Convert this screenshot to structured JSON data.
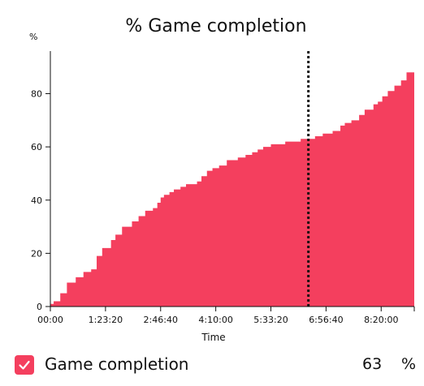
{
  "chart_data": {
    "type": "area",
    "title": "%  Game completion",
    "ylabel": "%",
    "xlabel": "Time",
    "ylim": [
      0,
      96
    ],
    "xlim_seconds": [
      0,
      33000
    ],
    "y_ticks": [
      0,
      20,
      40,
      60,
      80
    ],
    "x_tick_labels": [
      "00:00",
      "1:23:20",
      "2:46:40",
      "4:10:00",
      "5:33:20",
      "6:56:40",
      "8:20:00"
    ],
    "x_tick_seconds": [
      0,
      5000,
      10000,
      15000,
      20000,
      25000,
      30000
    ],
    "fill_color": "#f43f5e",
    "marker_line_seconds": 23400,
    "series": [
      {
        "name": "Game completion",
        "x_seconds": [
          0,
          300,
          900,
          1500,
          2300,
          3000,
          3700,
          4200,
          4700,
          5500,
          5900,
          6500,
          7400,
          8000,
          8600,
          9300,
          9700,
          10000,
          10300,
          10800,
          11200,
          11800,
          12300,
          12800,
          13300,
          13700,
          14200,
          14700,
          15300,
          16000,
          17000,
          17700,
          18300,
          18800,
          19300,
          20000,
          20600,
          21300,
          22000,
          22700,
          23400,
          24000,
          24700,
          25600,
          26300,
          26700,
          27300,
          28000,
          28500,
          29300,
          29700,
          30100,
          30600,
          31200,
          31800,
          32300,
          33000
        ],
        "values": [
          1,
          2,
          5,
          9,
          11,
          13,
          14,
          19,
          22,
          25,
          27,
          30,
          32,
          34,
          36,
          37,
          39,
          41,
          42,
          43,
          44,
          45,
          46,
          46,
          47,
          49,
          51,
          52,
          53,
          55,
          56,
          57,
          58,
          59,
          60,
          61,
          61,
          62,
          62,
          63,
          63,
          64,
          65,
          66,
          68,
          69,
          70,
          72,
          74,
          76,
          77,
          79,
          81,
          83,
          85,
          88,
          91
        ]
      }
    ]
  },
  "legend": {
    "label": "Game completion",
    "checked": true,
    "value": "63",
    "unit": "%",
    "color": "#f43f5e"
  }
}
